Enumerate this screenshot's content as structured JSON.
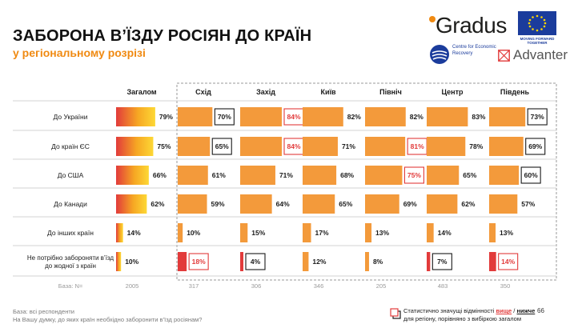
{
  "title": "ЗАБОРОНА В’ЇЗДУ РОСІЯН ДО КРАЇН",
  "subtitle": "у регіональному розрізі",
  "logos": {
    "gradus": "Gradus",
    "eu_text": "MOVING FORWARD TOGETHER",
    "cer_text": "Centre for Economic Recovery",
    "advanter": "Advanter"
  },
  "colors": {
    "bar_orange": "#f39a3b",
    "grad_start": "#e23b3b",
    "grad_end": "#fdd835",
    "highlight_red": "#e23b3b",
    "title_orange": "#f08a12"
  },
  "chart_data": {
    "type": "bar",
    "columns": [
      "Загалом",
      "Схід",
      "Захід",
      "Київ",
      "Північ",
      "Центр",
      "Південь"
    ],
    "rows": [
      "До України",
      "До країн ЄС",
      "До США",
      "До Канади",
      "До інших країн",
      "Не потрібно забороняти в’їзд до жодної з країн"
    ],
    "series": [
      {
        "name": "Загалом",
        "values": [
          79,
          75,
          66,
          62,
          14,
          10
        ]
      },
      {
        "name": "Схід",
        "values": [
          70,
          65,
          61,
          59,
          10,
          18
        ]
      },
      {
        "name": "Захід",
        "values": [
          84,
          84,
          71,
          64,
          15,
          4
        ]
      },
      {
        "name": "Київ",
        "values": [
          82,
          71,
          68,
          65,
          17,
          12
        ]
      },
      {
        "name": "Північ",
        "values": [
          82,
          81,
          75,
          69,
          13,
          8
        ]
      },
      {
        "name": "Центр",
        "values": [
          83,
          78,
          65,
          62,
          14,
          7
        ]
      },
      {
        "name": "Південь",
        "values": [
          73,
          69,
          60,
          57,
          13,
          14
        ]
      }
    ],
    "significance": [
      [
        "",
        "lower",
        "higher",
        "",
        "",
        "",
        "lower"
      ],
      [
        "",
        "lower",
        "higher",
        "",
        "higher",
        "",
        "lower"
      ],
      [
        "",
        "",
        "",
        "",
        "higher",
        "",
        "lower"
      ],
      [
        "",
        "",
        "",
        "",
        "",
        "",
        ""
      ],
      [
        "",
        "",
        "",
        "",
        "",
        "",
        ""
      ],
      [
        "",
        "higher",
        "lower",
        "",
        "",
        "lower",
        "higher"
      ]
    ],
    "value_suffix": "%",
    "base_label": "База: N=",
    "base": [
      2005,
      317,
      306,
      346,
      205,
      483,
      350
    ],
    "xlim": [
      0,
      100
    ]
  },
  "footer": {
    "base_note": "База: всі респонденти",
    "question": "На Вашу думку, до яких країн необхідно заборонити в’їзд росіянам?",
    "legend_part1": "Статистично значущі відмінності ",
    "legend_higher": "вище",
    "legend_sep": " / ",
    "legend_lower": "нижче",
    "legend_part2": "для регіону, порівняно з вибіркою загалом",
    "page_number": "66"
  }
}
